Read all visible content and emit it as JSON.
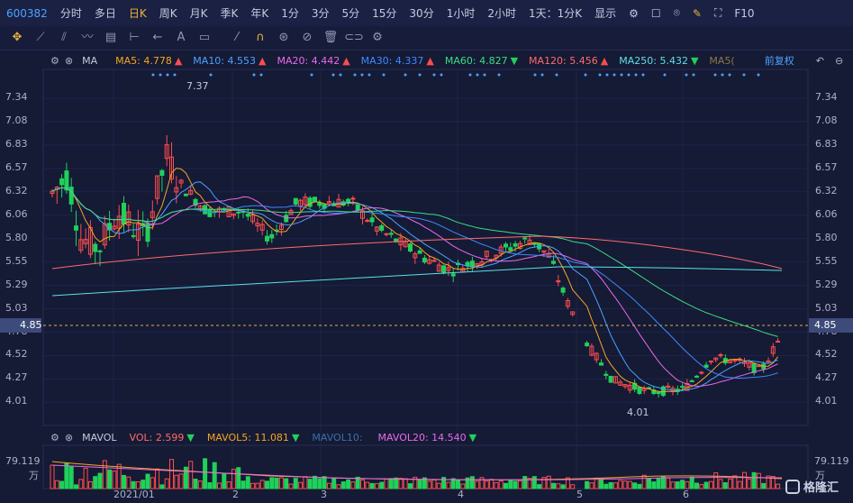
{
  "toolbar": {
    "code": "600382",
    "periods": [
      "分时",
      "多日",
      "日K",
      "周K",
      "月K",
      "季K",
      "年K",
      "1分",
      "3分",
      "5分",
      "15分",
      "30分",
      "1小时",
      "2小时"
    ],
    "active_period": "日K",
    "period_select": "1天：1分K",
    "display": "显示",
    "f10": "F10"
  },
  "ma": {
    "label": "MA",
    "items": [
      {
        "name": "MA5: 4.778",
        "dir": "▲",
        "color": "#f5a623"
      },
      {
        "name": "MA10: 4.553",
        "dir": "▲",
        "color": "#4aa3ff"
      },
      {
        "name": "MA20: 4.442",
        "dir": "▲",
        "color": "#e86be8"
      },
      {
        "name": "MA30: 4.337",
        "dir": "▲",
        "color": "#3d8bff"
      },
      {
        "name": "MA60: 4.827",
        "dir": "▼",
        "color": "#3ddc84"
      },
      {
        "name": "MA120: 5.456",
        "dir": "▲",
        "color": "#ff6b6b"
      },
      {
        "name": "MA250: 5.432",
        "dir": "▼",
        "color": "#5ce1e6"
      },
      {
        "name": "MA5(",
        "dir": "",
        "color": "#8a7a40"
      }
    ],
    "adjust": "前复权"
  },
  "y_axis": [
    "7.34",
    "7.08",
    "6.83",
    "6.57",
    "6.32",
    "6.06",
    "5.80",
    "5.55",
    "5.29",
    "5.03",
    "4.78",
    "4.52",
    "4.27",
    "4.01"
  ],
  "current_price": "4.85",
  "annotations": {
    "high": "7.37",
    "low": "4.01"
  },
  "vol": {
    "label": "MAVOL",
    "items": [
      {
        "name": "VOL: 2.599",
        "dir": "▼",
        "color": "#ff6b6b"
      },
      {
        "name": "MAVOL5: 11.081",
        "dir": "▼",
        "color": "#f5a623"
      },
      {
        "name": "MAVOL10:",
        "dir": "",
        "color": "#3d6fa8"
      },
      {
        "name": "MAVOL20: 14.540",
        "dir": "▼",
        "color": "#e86be8"
      }
    ],
    "axis_top": "79.119",
    "unit": "万"
  },
  "x_axis": [
    "2021/01",
    "2",
    "3",
    "4",
    "5",
    "6"
  ],
  "logo": "格隆汇",
  "colors": {
    "up": "#ff4d4d",
    "down": "#1fd15a",
    "bg": "#151a35"
  }
}
